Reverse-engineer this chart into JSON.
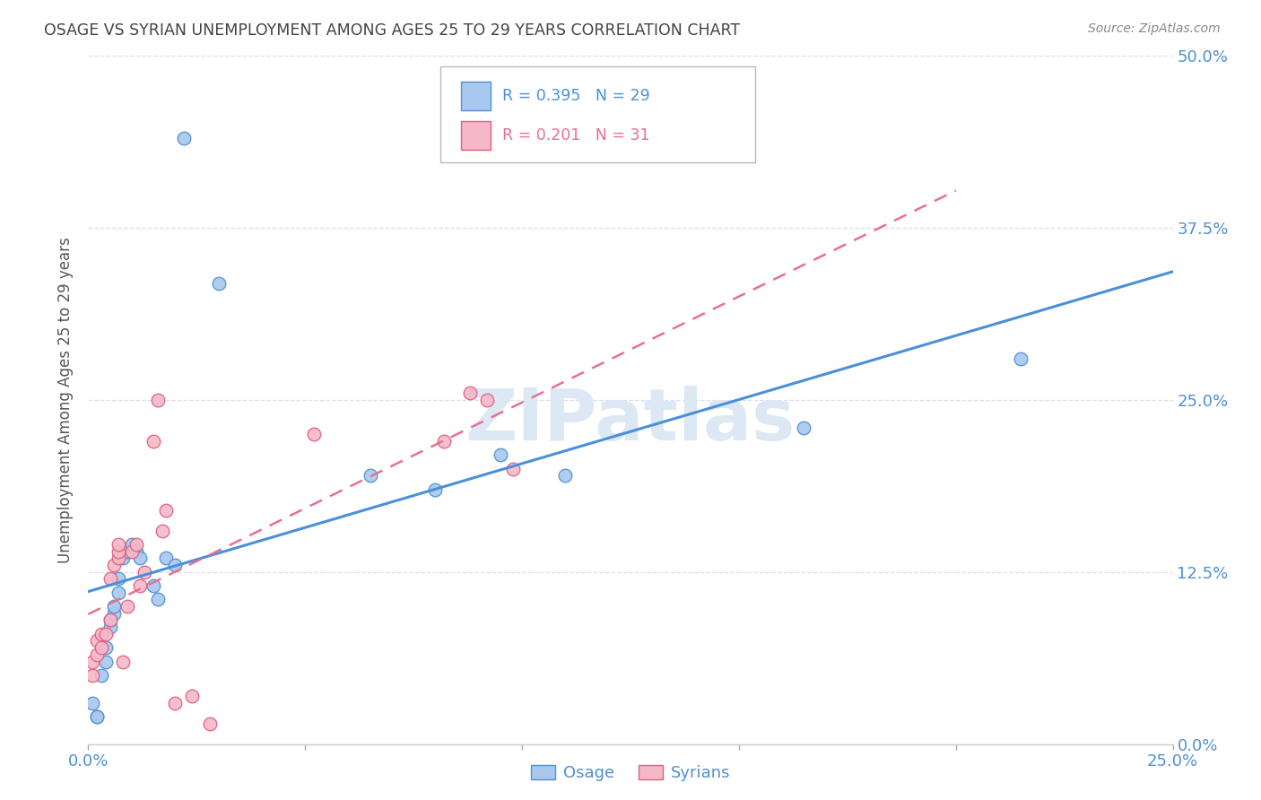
{
  "title": "OSAGE VS SYRIAN UNEMPLOYMENT AMONG AGES 25 TO 29 YEARS CORRELATION CHART",
  "source": "Source: ZipAtlas.com",
  "ylabel": "Unemployment Among Ages 25 to 29 years",
  "xlim": [
    0.0,
    0.25
  ],
  "ylim": [
    0.0,
    0.5
  ],
  "yticks": [
    0.0,
    0.125,
    0.25,
    0.375,
    0.5
  ],
  "ytick_labels": [
    "0.0%",
    "12.5%",
    "25.0%",
    "37.5%",
    "50.0%"
  ],
  "xticks": [
    0.0,
    0.05,
    0.1,
    0.15,
    0.2,
    0.25
  ],
  "xtick_labels": [
    "0.0%",
    "",
    "",
    "",
    "",
    "25.0%"
  ],
  "osage_color": "#a8c8f0",
  "syrians_color": "#f5b8c8",
  "osage_edge_color": "#5090d0",
  "syrians_edge_color": "#e06080",
  "osage_line_color": "#4a90d9",
  "syrians_line_color": "#e87090",
  "legend_r_osage": "R = 0.395",
  "legend_n_osage": "N = 29",
  "legend_r_syrians": "R = 0.201",
  "legend_n_syrians": "N = 31",
  "osage_x": [
    0.001,
    0.002,
    0.002,
    0.003,
    0.004,
    0.004,
    0.005,
    0.005,
    0.006,
    0.006,
    0.007,
    0.007,
    0.008,
    0.009,
    0.01,
    0.011,
    0.012,
    0.015,
    0.016,
    0.018,
    0.02,
    0.022,
    0.03,
    0.065,
    0.08,
    0.095,
    0.11,
    0.165,
    0.215
  ],
  "osage_y": [
    0.03,
    0.02,
    0.02,
    0.05,
    0.06,
    0.07,
    0.085,
    0.09,
    0.095,
    0.1,
    0.11,
    0.12,
    0.135,
    0.14,
    0.145,
    0.14,
    0.135,
    0.115,
    0.105,
    0.135,
    0.13,
    0.44,
    0.335,
    0.195,
    0.185,
    0.21,
    0.195,
    0.23,
    0.28
  ],
  "syrians_x": [
    0.001,
    0.001,
    0.002,
    0.002,
    0.003,
    0.003,
    0.004,
    0.005,
    0.005,
    0.006,
    0.007,
    0.007,
    0.007,
    0.008,
    0.009,
    0.01,
    0.011,
    0.012,
    0.013,
    0.015,
    0.016,
    0.017,
    0.018,
    0.02,
    0.024,
    0.028,
    0.052,
    0.082,
    0.088,
    0.092,
    0.098
  ],
  "syrians_y": [
    0.05,
    0.06,
    0.065,
    0.075,
    0.07,
    0.08,
    0.08,
    0.09,
    0.12,
    0.13,
    0.135,
    0.14,
    0.145,
    0.06,
    0.1,
    0.14,
    0.145,
    0.115,
    0.125,
    0.22,
    0.25,
    0.155,
    0.17,
    0.03,
    0.035,
    0.015,
    0.225,
    0.22,
    0.255,
    0.25,
    0.2
  ],
  "watermark_text": "ZIPatlas",
  "watermark_color": "#dde8f5",
  "background_color": "#ffffff",
  "grid_color": "#ddddee",
  "title_color": "#444444",
  "source_color": "#888888",
  "axis_label_color": "#555555",
  "tick_color": "#5090d0"
}
